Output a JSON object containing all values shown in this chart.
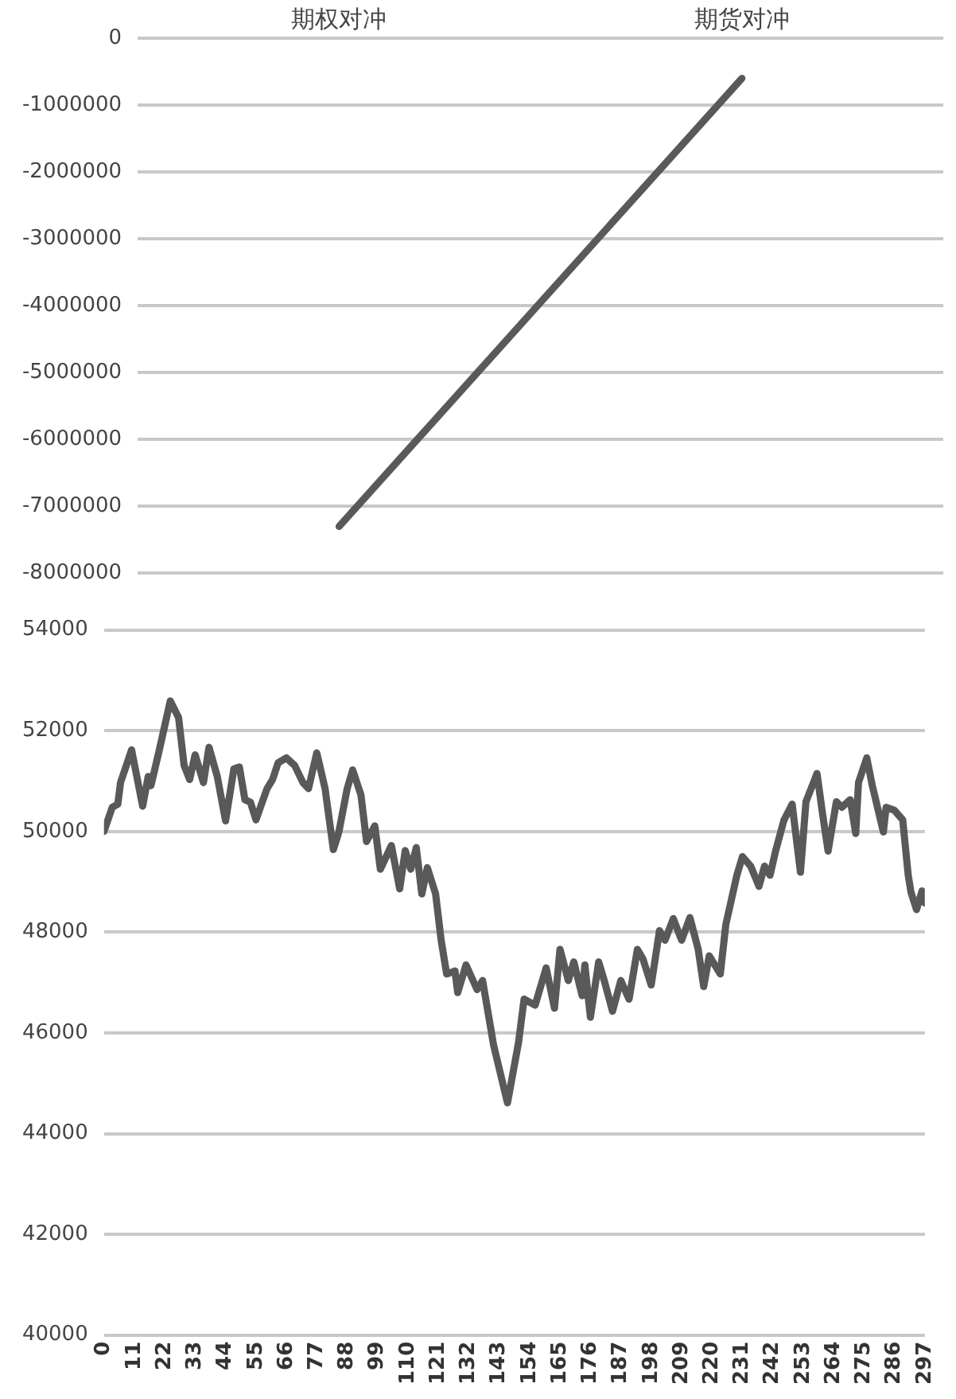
{
  "chart_data": [
    {
      "type": "line",
      "categories": [
        "期权对冲",
        "期货对冲"
      ],
      "values": [
        -7300000,
        -600000
      ],
      "color": "#595959",
      "ylim": [
        -8000000,
        0
      ],
      "yticks": [
        -8000000,
        -7000000,
        -6000000,
        -5000000,
        -4000000,
        -3000000,
        -2000000,
        -1000000,
        0
      ],
      "grid": "y"
    },
    {
      "type": "line",
      "color": "#595959",
      "xlim": [
        0,
        297
      ],
      "xticks": [
        0,
        11,
        22,
        33,
        44,
        55,
        66,
        77,
        88,
        99,
        110,
        121,
        132,
        143,
        154,
        165,
        176,
        187,
        198,
        209,
        220,
        231,
        242,
        253,
        264,
        275,
        286,
        297
      ],
      "ylim": [
        40000,
        54000
      ],
      "yticks": [
        40000,
        42000,
        44000,
        46000,
        48000,
        50000,
        52000,
        54000
      ],
      "grid": "y",
      "x": [
        0,
        3,
        5,
        6,
        10,
        14,
        16,
        17,
        20,
        24,
        27,
        29,
        31,
        33,
        36,
        38,
        41,
        44,
        47,
        49,
        51,
        53,
        55,
        59,
        61,
        63,
        66,
        69,
        72,
        74,
        77,
        80,
        83,
        85,
        88,
        90,
        93,
        95,
        98,
        100,
        104,
        107,
        109,
        111,
        113,
        115,
        117,
        120,
        122,
        124,
        127,
        128,
        131,
        135,
        137,
        141,
        146,
        150,
        152,
        156,
        160,
        163,
        165,
        168,
        170,
        173,
        174,
        176,
        179,
        181,
        184,
        187,
        190,
        193,
        195,
        198,
        201,
        203,
        206,
        209,
        212,
        215,
        217,
        219,
        223,
        225,
        229,
        231,
        234,
        237,
        239,
        241,
        243,
        246,
        249,
        252,
        254,
        258,
        260,
        262,
        265,
        267,
        270,
        272,
        273,
        276,
        278,
        282,
        283,
        286,
        289,
        291,
        292,
        294,
        296,
        297
      ],
      "values": [
        50000,
        50480,
        50540,
        50970,
        51620,
        50500,
        51090,
        50910,
        51610,
        52590,
        52260,
        51310,
        51030,
        51520,
        50970,
        51670,
        51090,
        50210,
        51240,
        51280,
        50630,
        50580,
        50230,
        50850,
        51030,
        51360,
        51460,
        51310,
        50970,
        50850,
        51560,
        50850,
        49640,
        49990,
        50850,
        51220,
        50720,
        49800,
        50110,
        49250,
        49720,
        48860,
        49620,
        49250,
        49680,
        48760,
        49280,
        48760,
        47840,
        47170,
        47230,
        46800,
        47350,
        46860,
        47040,
        45750,
        44610,
        45810,
        46670,
        46550,
        47290,
        46490,
        47660,
        47040,
        47410,
        46740,
        47350,
        46310,
        47410,
        47040,
        46430,
        47040,
        46670,
        47660,
        47470,
        46950,
        48030,
        47840,
        48270,
        47840,
        48290,
        47660,
        46920,
        47530,
        47170,
        48150,
        49130,
        49500,
        49310,
        48910,
        49310,
        49130,
        49610,
        50220,
        50540,
        49190,
        50590,
        51150,
        50350,
        49610,
        50590,
        50480,
        50630,
        49960,
        50970,
        51460,
        50910,
        49990,
        50480,
        50420,
        50230,
        49130,
        48790,
        48450,
        48820,
        48580
      ]
    }
  ]
}
